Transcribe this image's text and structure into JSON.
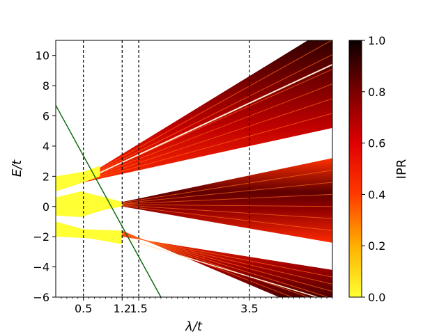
{
  "chart_data": {
    "type": "heatmap",
    "title": "",
    "xlabel": "λ/t",
    "ylabel": "E/t",
    "xlim": [
      0,
      5
    ],
    "ylim": [
      -6,
      11
    ],
    "x_ticks": [
      0.5,
      1.2,
      1.5,
      3.5
    ],
    "x_tick_labels": [
      "0.5",
      "1.2",
      "1.5",
      "3.5"
    ],
    "y_ticks": [
      -6,
      -4,
      -2,
      0,
      2,
      4,
      6,
      8,
      10
    ],
    "y_tick_labels": [
      "−6",
      "−4",
      "−2",
      "0",
      "2",
      "4",
      "6",
      "8",
      "10"
    ],
    "vertical_lines": [
      0.5,
      1.2,
      1.5,
      3.5
    ],
    "green_line": {
      "color": "#006400",
      "points": [
        [
          0,
          6.7
        ],
        [
          1.9,
          -6
        ]
      ]
    },
    "bands": [
      {
        "name": "upper",
        "lambda_start": 0.5,
        "lower": [
          [
            0.5,
            1.6
          ],
          [
            5,
            5.2
          ]
        ],
        "upper": [
          [
            0.5,
            1.9
          ],
          [
            5,
            12
          ]
        ]
      },
      {
        "name": "middle",
        "lambda_start": 1.2,
        "lower": [
          [
            1.2,
            0.0
          ],
          [
            5,
            -2.4
          ]
        ],
        "upper": [
          [
            1.2,
            0.3
          ],
          [
            5,
            3.2
          ]
        ]
      },
      {
        "name": "lower",
        "lambda_start": 1.2,
        "lower": [
          [
            1.2,
            -1.6
          ],
          [
            5,
            -7.5
          ]
        ],
        "upper": [
          [
            1.2,
            -2.0
          ],
          [
            5,
            -4.2
          ]
        ]
      }
    ],
    "extended_region": {
      "color": "#ffff33",
      "lambda_range": [
        0,
        1.2
      ]
    },
    "colorbar": {
      "label": "IPR",
      "range": [
        0,
        1
      ],
      "ticks": [
        0.0,
        0.2,
        0.4,
        0.6,
        0.8,
        1.0
      ],
      "tick_labels": [
        "0.0",
        "0.2",
        "0.4",
        "0.6",
        "0.8",
        "1.0"
      ],
      "colormap": "hot_r"
    }
  }
}
